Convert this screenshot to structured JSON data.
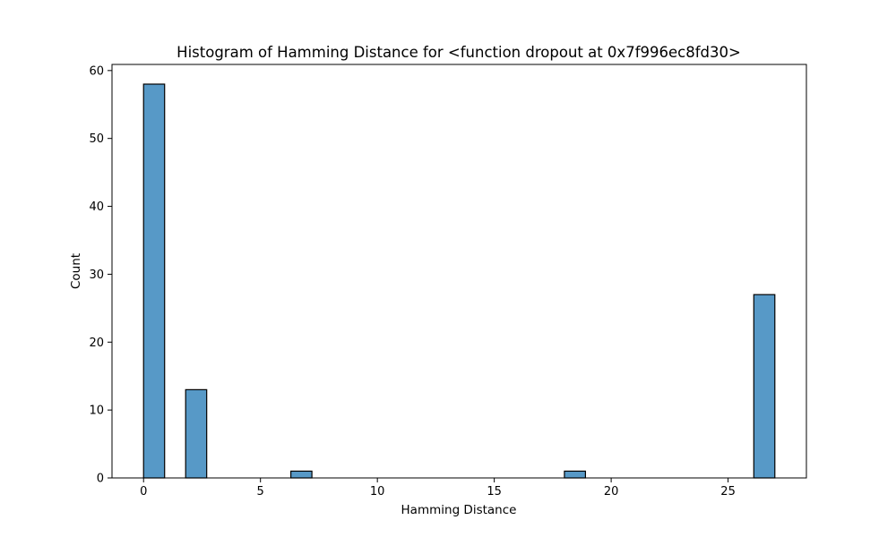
{
  "chart_data": {
    "type": "bar",
    "title": "Histogram of Hamming Distance for <function dropout at 0x7f996ec8fd30>",
    "xlabel": "Hamming Distance",
    "ylabel": "Count",
    "bar_color": "#5799c7",
    "bins": [
      {
        "x0": 0,
        "x1": 0.9,
        "count": 58
      },
      {
        "x0": 1.8,
        "x1": 2.7,
        "count": 13
      },
      {
        "x0": 6.3,
        "x1": 7.2,
        "count": 1
      },
      {
        "x0": 18.0,
        "x1": 18.9,
        "count": 1
      },
      {
        "x0": 26.1,
        "x1": 27.0,
        "count": 27
      }
    ],
    "xlim": [
      -1.35,
      28.35
    ],
    "ylim": [
      0,
      60.9
    ],
    "xticks": [
      0,
      5,
      10,
      15,
      20,
      25
    ],
    "yticks": [
      0,
      10,
      20,
      30,
      40,
      50,
      60
    ],
    "grid": false,
    "legend": "none"
  }
}
